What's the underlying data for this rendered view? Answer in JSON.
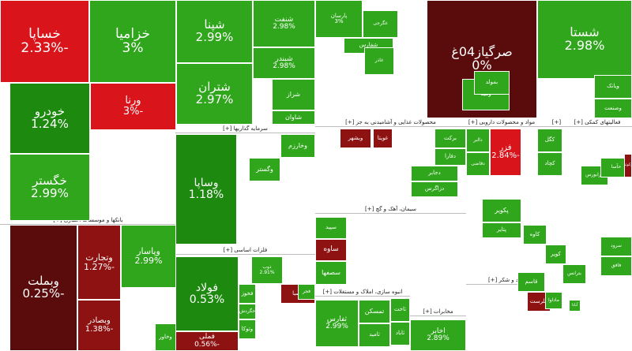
{
  "colors": {
    "strong_pos": "#1d8a0f",
    "pos": "#2fa61c",
    "light_pos": "#3cb82a",
    "dark_neg": "#5a0b0b",
    "neg": "#8e1212",
    "red": "#c0181c",
    "bright_red": "#d9141b"
  },
  "sectors": [
    {
      "id": "sector-auto",
      "header": ""
    },
    {
      "id": "sector-banks",
      "header": "بانکها و موسسات اعتباری [+]"
    },
    {
      "id": "sector-investment",
      "header": "سرمایه گذاریها [+]"
    },
    {
      "id": "sector-metals",
      "header": "فلزات اساسی [+]"
    },
    {
      "id": "sector-food",
      "header": "محصولات غذایی و آشامیدنی به جز [+]"
    },
    {
      "id": "sector-pharma",
      "header": "مواد و محصولات دارویی [+]"
    },
    {
      "id": "sector-mining",
      "header": "استخراج کانه های فلزی [+]"
    },
    {
      "id": "sector-telecom",
      "header": "فعالیتهای کمکی [+]"
    },
    {
      "id": "sector-cement",
      "header": "سیمان، آهک و گچ [+]"
    },
    {
      "id": "sector-realestate",
      "header": "انبوه سازی، املاک و مستغلات [+]"
    },
    {
      "id": "sector-telecomm2",
      "header": "مخابرات [+]"
    },
    {
      "id": "sector-sugar",
      "header": "قند و شکر [+]"
    }
  ],
  "tiles": [
    {
      "name": "خساپا",
      "pct": "-2.33%",
      "tone": "bright_red"
    },
    {
      "name": "خزامیا",
      "pct": "3%",
      "tone": "pos"
    },
    {
      "name": "خودرو",
      "pct": "1.24%",
      "tone": "strong_pos"
    },
    {
      "name": "ورنا",
      "pct": "-3%",
      "tone": "bright_red"
    },
    {
      "name": "خگستر",
      "pct": "2.99%",
      "tone": "pos"
    },
    {
      "name": "شپنا",
      "pct": "2.99%",
      "tone": "pos"
    },
    {
      "name": "شتران",
      "pct": "2.97%",
      "tone": "pos"
    },
    {
      "name": "شنفت",
      "pct": "2.98%",
      "tone": "pos"
    },
    {
      "name": "شبندر",
      "pct": "2.98%",
      "tone": "pos"
    },
    {
      "name": "شراز",
      "pct": "",
      "tone": "pos"
    },
    {
      "name": "شاوان",
      "pct": "",
      "tone": "pos"
    },
    {
      "name": "وبملت",
      "pct": "-0.25%",
      "tone": "dark_neg"
    },
    {
      "name": "وتجارت",
      "pct": "-1.27%",
      "tone": "neg"
    },
    {
      "name": "وبصادر",
      "pct": "-1.38%",
      "tone": "neg"
    },
    {
      "name": "وپاسار",
      "pct": "2.99%",
      "tone": "pos"
    },
    {
      "name": "وخاور",
      "pct": "",
      "tone": "pos"
    },
    {
      "name": "وساپا",
      "pct": "1.18%",
      "tone": "strong_pos"
    },
    {
      "name": "وخارزم",
      "pct": "",
      "tone": "pos"
    },
    {
      "name": "وگستر",
      "pct": "",
      "tone": "pos"
    },
    {
      "name": "فولاد",
      "pct": "0.53%",
      "tone": "strong_pos"
    },
    {
      "name": "فملی",
      "pct": "-0.56%",
      "tone": "neg"
    },
    {
      "name": "ذوب",
      "pct": "2.91%",
      "tone": "pos"
    },
    {
      "name": "فخوز",
      "pct": "",
      "tone": "pos"
    },
    {
      "name": "فصبا",
      "pct": "",
      "tone": "neg"
    },
    {
      "name": "وتوکا",
      "pct": "",
      "tone": "pos"
    },
    {
      "name": "حگردش",
      "pct": "",
      "tone": "pos"
    },
    {
      "name": "فجر",
      "pct": "",
      "tone": "pos"
    },
    {
      "name": "پارسان",
      "pct": "3%",
      "tone": "pos"
    },
    {
      "name": "شفارس",
      "pct": "",
      "tone": "pos"
    },
    {
      "name": "غگرجی",
      "pct": "",
      "tone": "pos"
    },
    {
      "name": "غاذر",
      "pct": "",
      "tone": "pos"
    },
    {
      "name": "وبشهر",
      "pct": "",
      "tone": "neg"
    },
    {
      "name": "غویتا",
      "pct": "",
      "tone": "neg"
    },
    {
      "name": "برکت",
      "pct": "",
      "tone": "pos"
    },
    {
      "name": "دفارا",
      "pct": "",
      "tone": "pos"
    },
    {
      "name": "دجابر",
      "pct": "",
      "tone": "pos"
    },
    {
      "name": "دزاگرس",
      "pct": "",
      "tone": "pos"
    },
    {
      "name": "دالبر",
      "pct": "",
      "tone": "pos"
    },
    {
      "name": "دقاضی",
      "pct": "",
      "tone": "pos"
    },
    {
      "name": "کگل",
      "pct": "",
      "tone": "pos"
    },
    {
      "name": "فزر",
      "pct": "-2.84%",
      "tone": "bright_red"
    },
    {
      "name": "کچاد",
      "pct": "",
      "tone": "pos"
    },
    {
      "name": "سپید",
      "pct": "",
      "tone": "pos"
    },
    {
      "name": "ساوه",
      "pct": "",
      "tone": "neg"
    },
    {
      "name": "سصفها",
      "pct": "",
      "tone": "pos"
    },
    {
      "name": "ثفارس",
      "pct": "2.99%",
      "tone": "pos"
    },
    {
      "name": "تمسکن",
      "pct": "",
      "tone": "pos"
    },
    {
      "name": "ثاخت",
      "pct": "",
      "tone": "pos"
    },
    {
      "name": "ثامید",
      "pct": "",
      "tone": "pos"
    },
    {
      "name": "ثاباد",
      "pct": "",
      "tone": "pos"
    },
    {
      "name": "اخابر",
      "pct": "2.89%",
      "tone": "pos"
    },
    {
      "name": "صرگیاز04غ",
      "pct": "0%",
      "tone": "dark_neg"
    },
    {
      "name": "شستا",
      "pct": "2.98%",
      "tone": "pos"
    },
    {
      "name": "ومینا",
      "pct": "",
      "tone": "pos"
    },
    {
      "name": "بمولد",
      "pct": "",
      "tone": "pos"
    },
    {
      "name": "ویانک",
      "pct": "",
      "tone": "pos"
    },
    {
      "name": "وصنعت",
      "pct": "",
      "tone": "pos"
    },
    {
      "name": "پکویر",
      "pct": "",
      "tone": "pos"
    },
    {
      "name": "پتایر",
      "pct": "",
      "tone": "pos"
    },
    {
      "name": "کویر",
      "pct": "",
      "tone": "pos"
    },
    {
      "name": "کاوه",
      "pct": "",
      "tone": "pos"
    },
    {
      "name": "قاسم",
      "pct": "",
      "tone": "pos"
    },
    {
      "name": "قلرست",
      "pct": "",
      "tone": "neg"
    },
    {
      "name": "ماداوا",
      "pct": "",
      "tone": "pos"
    },
    {
      "name": "آبادا",
      "pct": "",
      "tone": "pos"
    },
    {
      "name": "فرابورس",
      "pct": "",
      "tone": "pos"
    },
    {
      "name": "حآسا",
      "pct": "",
      "tone": "pos"
    },
    {
      "name": "سرود",
      "pct": "",
      "tone": "pos"
    },
    {
      "name": "فافق",
      "pct": "",
      "tone": "pos"
    },
    {
      "name": "بترانس",
      "pct": "",
      "tone": "pos"
    },
    {
      "name": "زکوثر",
      "pct": "",
      "tone": "neg"
    },
    {
      "name": "وتوس",
      "pct": "",
      "tone": "pos"
    }
  ]
}
